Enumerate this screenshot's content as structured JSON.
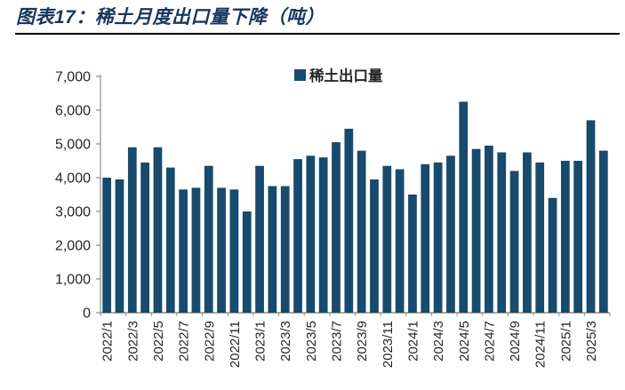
{
  "figure": {
    "title": "图表17：稀土月度出口量下降（吨）"
  },
  "chart_data": {
    "type": "bar",
    "title": "图表17：稀土月度出口量下降（吨）",
    "unit": "吨",
    "legend": [
      {
        "label": "稀土出口量",
        "color": "#174a6d"
      }
    ],
    "legend_position": "top-center",
    "grid": false,
    "ylim": [
      0,
      7000
    ],
    "y_tick_interval": 1000,
    "y_tick_labels": [
      "0",
      "1,000",
      "2,000",
      "3,000",
      "4,000",
      "5,000",
      "6,000",
      "7,000"
    ],
    "x_tick_labels_shown": [
      "2022/1",
      "2022/3",
      "2022/5",
      "2022/7",
      "2022/9",
      "2022/11",
      "2023/1",
      "2023/3",
      "2023/5",
      "2023/7",
      "2023/9",
      "2023/11",
      "2024/1",
      "2024/3",
      "2024/5",
      "2024/7",
      "2024/9",
      "2024/11",
      "2025/1",
      "2025/3"
    ],
    "categories": [
      "2022/1",
      "2022/2",
      "2022/3",
      "2022/4",
      "2022/5",
      "2022/6",
      "2022/7",
      "2022/8",
      "2022/9",
      "2022/10",
      "2022/11",
      "2022/12",
      "2023/1",
      "2023/2",
      "2023/3",
      "2023/4",
      "2023/5",
      "2023/6",
      "2023/7",
      "2023/8",
      "2023/9",
      "2023/10",
      "2023/11",
      "2023/12",
      "2024/1",
      "2024/2",
      "2024/3",
      "2024/4",
      "2024/5",
      "2024/6",
      "2024/7",
      "2024/8",
      "2024/9",
      "2024/10",
      "2024/11",
      "2024/12",
      "2025/1",
      "2025/2",
      "2025/3",
      "2025/4"
    ],
    "series": [
      {
        "name": "稀土出口量",
        "values": [
          4000,
          3950,
          4900,
          4450,
          4900,
          4300,
          3650,
          3700,
          4350,
          3700,
          3650,
          3000,
          4350,
          3750,
          3750,
          4550,
          4650,
          4600,
          5050,
          5450,
          4800,
          3950,
          4350,
          4250,
          3500,
          4400,
          4450,
          4650,
          6250,
          4850,
          4950,
          4750,
          4200,
          4750,
          4450,
          3400,
          4500,
          4500,
          5700,
          4800
        ]
      }
    ],
    "colors": {
      "bar": "#174a6d",
      "axis": "#8c8c8c",
      "tick_label": "#262626",
      "title": "#17375e",
      "rule": "#000000"
    }
  }
}
